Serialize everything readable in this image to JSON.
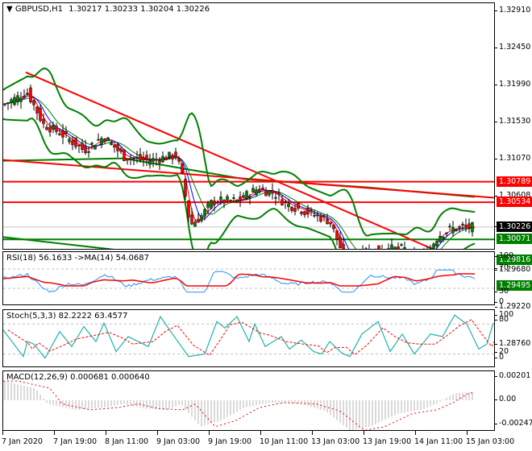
{
  "main": {
    "symbol_title": "GBPUSD,H1",
    "ohlc": "1.30217 1.30233 1.30204 1.30226",
    "price_scale": [
      "1.32910",
      "1.32450",
      "1.31990",
      "1.31530",
      "1.31070",
      "1.30608",
      "1.30226",
      "1.29680",
      "1.29220",
      "1.28760"
    ],
    "price_tags": [
      {
        "value": "1.30789",
        "color": "#ff0000"
      },
      {
        "value": "1.30534",
        "color": "#ff0000"
      },
      {
        "value": "1.30226",
        "color": "#000000"
      },
      {
        "value": "1.30071",
        "color": "#008000"
      },
      {
        "value": "1.29816",
        "color": "#008000"
      },
      {
        "value": "1.29495",
        "color": "#008000"
      }
    ]
  },
  "rsi": {
    "title": "RSI(18) 56.1633  ->MA(14) 54.0687",
    "scale": [
      "100",
      "70",
      "30",
      "0"
    ]
  },
  "stoch": {
    "title": "Stoch(5,3,3) 82.2222 63.4577",
    "scale": [
      "100",
      "80",
      "20",
      "0"
    ]
  },
  "macd": {
    "title": "MACD(12,26,9) 0.000681 0.000640",
    "scale": [
      "0.00201",
      "0.00",
      "-0.002471"
    ]
  },
  "xaxis": {
    "labels": [
      "7 Jan 2020",
      "7 Jan 19:00",
      "8 Jan 11:00",
      "9 Jan 03:00",
      "9 Jan 19:00",
      "10 Jan 11:00",
      "13 Jan 03:00",
      "13 Jan 19:00",
      "14 Jan 11:00",
      "15 Jan 03:00"
    ]
  },
  "colors": {
    "bull": "#008000",
    "bear": "#ff0000",
    "resistance": "#ff0000",
    "support": "#008000",
    "bollinger": "#008000",
    "ma_fast": "#ff0000",
    "ma_slow": "#0000ff",
    "rsi": "#1e90ff",
    "stoch_main": "#20b2aa",
    "signal": "#ff0000",
    "macd_hist": "#c0c0c0"
  },
  "chart_data": [
    {
      "type": "candlestick",
      "title": "GBPUSD,H1",
      "ohlc_last": {
        "open": 1.30217,
        "high": 1.30233,
        "low": 1.30204,
        "close": 1.30226
      },
      "ylim": [
        1.2876,
        1.3291
      ],
      "horizontal_levels": [
        {
          "value": 1.30789,
          "color": "red",
          "role": "resistance"
        },
        {
          "value": 1.30534,
          "color": "red",
          "role": "resistance"
        },
        {
          "value": 1.30071,
          "color": "green",
          "role": "support"
        },
        {
          "value": 1.29816,
          "color": "green",
          "role": "support"
        },
        {
          "value": 1.29495,
          "color": "green",
          "role": "support"
        }
      ],
      "trendlines": [
        {
          "color": "red",
          "from": [
            "7 Jan 2020 08:00",
            1.3215
          ],
          "to": [
            "15 Jan 03:00",
            1.2968
          ]
        },
        {
          "color": "red",
          "from": [
            "7 Jan 2020",
            1.3106
          ],
          "to": [
            "15 Jan 03:00",
            1.306
          ]
        },
        {
          "color": "green",
          "from": [
            "7 Jan 2020",
            1.301
          ],
          "to": [
            "15 Jan 03:00",
            1.2942
          ]
        }
      ],
      "approx_close_path": [
        [
          "7 Jan 2020",
          1.3175
        ],
        [
          "7 Jan 08:00",
          1.319
        ],
        [
          "7 Jan 19:00",
          1.314
        ],
        [
          "8 Jan 11:00",
          1.311
        ],
        [
          "9 Jan 03:00",
          1.3115
        ],
        [
          "9 Jan 07:00",
          1.3025
        ],
        [
          "9 Jan 19:00",
          1.305
        ],
        [
          "10 Jan 11:00",
          1.3065
        ],
        [
          "10 Jan 20:00",
          1.303
        ],
        [
          "13 Jan 03:00",
          1.298
        ],
        [
          "13 Jan 19:00",
          1.2995
        ],
        [
          "14 Jan 05:00",
          1.2975
        ],
        [
          "14 Jan 11:00",
          1.3015
        ],
        [
          "15 Jan 03:00",
          1.30226
        ]
      ],
      "xlabel": "",
      "ylabel": ""
    },
    {
      "type": "line",
      "title": "RSI(18)",
      "series": [
        {
          "name": "RSI(18)",
          "last": 56.1633
        },
        {
          "name": "MA(14)",
          "last": 54.0687
        }
      ],
      "ylim": [
        0,
        100
      ],
      "levels": [
        70,
        30
      ]
    },
    {
      "type": "line",
      "title": "Stoch(5,3,3)",
      "series": [
        {
          "name": "%K",
          "last": 82.2222
        },
        {
          "name": "%D",
          "last": 63.4577
        }
      ],
      "ylim": [
        0,
        100
      ],
      "levels": [
        80,
        20
      ]
    },
    {
      "type": "bar",
      "title": "MACD(12,26,9)",
      "series": [
        {
          "name": "MACD",
          "last": 0.000681
        },
        {
          "name": "Signal",
          "last": 0.00064
        }
      ],
      "ylim": [
        -0.002471,
        0.00201
      ]
    }
  ]
}
